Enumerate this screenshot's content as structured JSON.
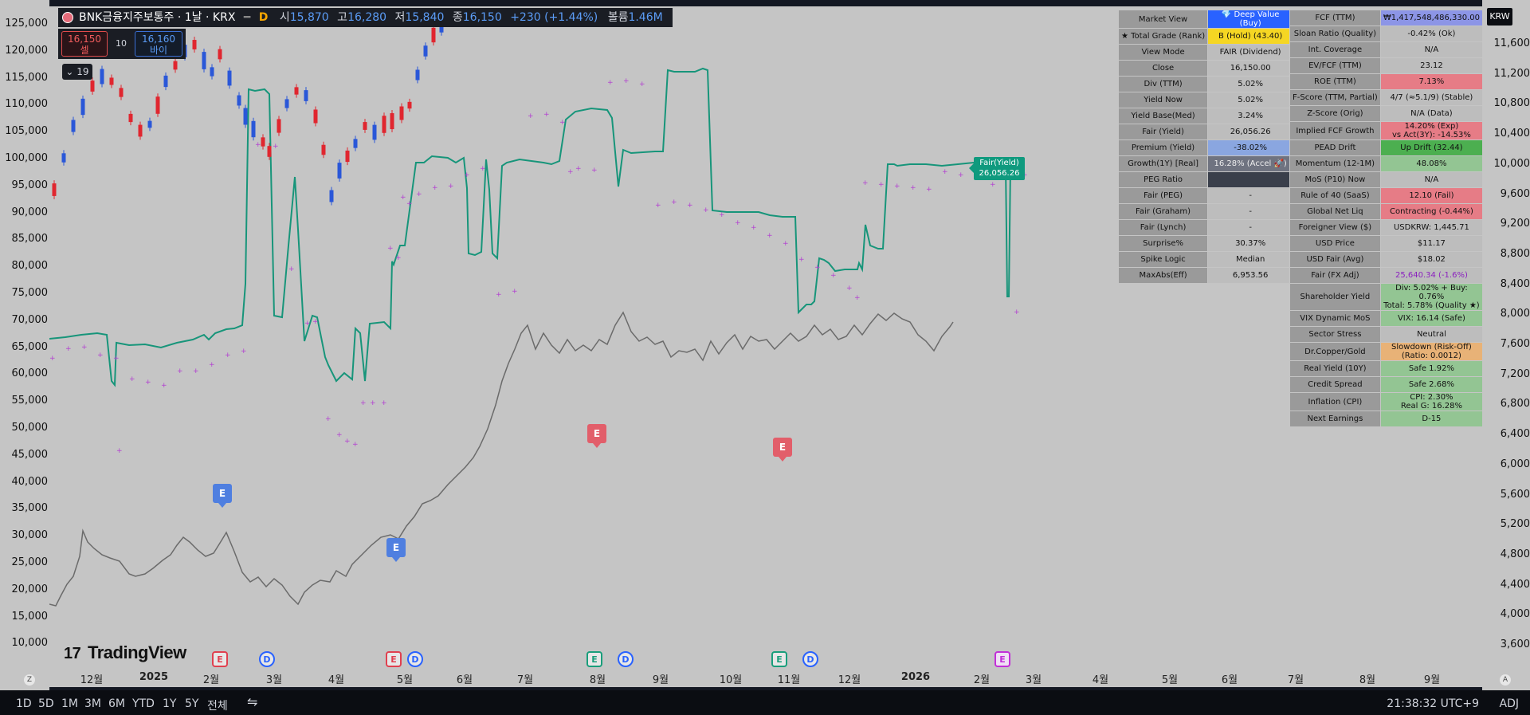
{
  "header": {
    "symbol": "BNK금융지주보통주 · 1날 · KRX",
    "dd": "D",
    "open_label": "시",
    "open": "15,870",
    "high_label": "고",
    "high": "16,280",
    "low_label": "저",
    "low": "15,840",
    "close_label": "종",
    "close": "16,150",
    "change": "+230 (+1.44%)",
    "volume_label": "볼륨",
    "volume": "1.46M"
  },
  "trade": {
    "sell_price": "16,150",
    "sell_label": "셀",
    "spread": "10",
    "buy_price": "16,160",
    "buy_label": "바이"
  },
  "collapse_label": "19",
  "brand": "TradingView",
  "currency": "KRW",
  "left_axis": [
    "125,000",
    "120,000",
    "115,000",
    "110,000",
    "105,000",
    "100,000",
    "95,000",
    "90,000",
    "85,000",
    "80,000",
    "75,000",
    "70,000",
    "65,000",
    "60,000",
    "55,000",
    "50,000",
    "45,000",
    "40,000",
    "35,000",
    "30,000",
    "25,000",
    "20,000",
    "15,000",
    "10,000"
  ],
  "right_axis": [
    "11,600",
    "11,200",
    "10,800",
    "10,400",
    "10,000",
    "9,600",
    "9,200",
    "8,800",
    "8,400",
    "8,000",
    "7,600",
    "7,200",
    "6,800",
    "6,400",
    "6,000",
    "5,600",
    "5,200",
    "4,800",
    "4,400",
    "4,000",
    "3,600"
  ],
  "x_axis": [
    {
      "label": "12월",
      "bold": false
    },
    {
      "label": "2025",
      "bold": true
    },
    {
      "label": "2월",
      "bold": false
    },
    {
      "label": "3월",
      "bold": false
    },
    {
      "label": "4월",
      "bold": false
    },
    {
      "label": "5월",
      "bold": false
    },
    {
      "label": "6월",
      "bold": false
    },
    {
      "label": "7월",
      "bold": false
    },
    {
      "label": "8월",
      "bold": false
    },
    {
      "label": "9월",
      "bold": false
    },
    {
      "label": "10월",
      "bold": false
    },
    {
      "label": "11월",
      "bold": false
    },
    {
      "label": "12월",
      "bold": false
    },
    {
      "label": "2026",
      "bold": true
    },
    {
      "label": "2월",
      "bold": false
    },
    {
      "label": "3월",
      "bold": false
    },
    {
      "label": "4월",
      "bold": false
    },
    {
      "label": "5월",
      "bold": false
    },
    {
      "label": "6월",
      "bold": false
    },
    {
      "label": "7월",
      "bold": false
    },
    {
      "label": "8월",
      "bold": false
    },
    {
      "label": "9월",
      "bold": false
    }
  ],
  "corner_left": "Z",
  "corner_right": "A",
  "ranges": [
    "1D",
    "5D",
    "1M",
    "3M",
    "6M",
    "YTD",
    "1Y",
    "5Y",
    "전체"
  ],
  "clock": "21:38:32 UTC+9",
  "adj": "ADJ",
  "fair_badge": {
    "title": "Fair(Yield)",
    "value": "26,056.26"
  },
  "earnings_marker": "E",
  "dividend_marker": "D",
  "table_left": [
    {
      "k": "Market View",
      "v": "💎 Deep Value (Buy)",
      "cls": "bg-blue"
    },
    {
      "k": "★ Total Grade (Rank)",
      "v": "B (Hold) (43.40)",
      "cls": "bg-yellow"
    },
    {
      "k": "View Mode",
      "v": "FAIR (Dividend)",
      "cls": ""
    },
    {
      "k": "Close",
      "v": "16,150.00",
      "cls": ""
    },
    {
      "k": "Div (TTM)",
      "v": "5.02%",
      "cls": ""
    },
    {
      "k": "Yield Now",
      "v": "5.02%",
      "cls": ""
    },
    {
      "k": "Yield Base(Med)",
      "v": "3.24%",
      "cls": ""
    },
    {
      "k": "Fair (Yield)",
      "v": "26,056.26",
      "cls": "",
      "tall": true
    },
    {
      "k": "Premium (Yield)",
      "v": "-38.02%",
      "cls": "bg-ltblue"
    },
    {
      "k": "Growth(1Y) [Real]",
      "v": "16.28% (Accel 🚀)",
      "cls": "bg-gray"
    },
    {
      "k": "PEG Ratio",
      "v": "",
      "cls": "bg-dark"
    },
    {
      "k": "Fair (PEG)",
      "v": "-",
      "cls": ""
    },
    {
      "k": "Fair (Graham)",
      "v": "-",
      "cls": ""
    },
    {
      "k": "Fair (Lynch)",
      "v": "-",
      "cls": ""
    },
    {
      "k": "Surprise%",
      "v": "30.37%",
      "cls": ""
    },
    {
      "k": "Spike Logic",
      "v": "Median",
      "cls": ""
    },
    {
      "k": "MaxAbs(Eff)",
      "v": "6,953.56",
      "cls": ""
    }
  ],
  "table_right": [
    {
      "k": "FCF (TTM)",
      "v": "₩1,417,548,486,330.00",
      "cls": "bg-periwinkle"
    },
    {
      "k": "Sloan Ratio (Quality)",
      "v": "-0.42% (Ok)",
      "cls": ""
    },
    {
      "k": "Int. Coverage",
      "v": "N/A",
      "cls": ""
    },
    {
      "k": "EV/FCF (TTM)",
      "v": "23.12",
      "cls": ""
    },
    {
      "k": "ROE (TTM)",
      "v": "7.13%",
      "cls": "bg-red"
    },
    {
      "k": "F-Score (TTM, Partial)",
      "v": "4/7 (≈5.1/9) (Stable)",
      "cls": ""
    },
    {
      "k": "Z-Score (Orig)",
      "v": "N/A (Data)",
      "cls": ""
    },
    {
      "k": "Implied FCF Growth",
      "v": "14.20% (Exp)\nvs Act(3Y): -14.53%",
      "cls": "bg-red",
      "tall": true
    },
    {
      "k": "PEAD Drift",
      "v": "Up Drift (32.44)",
      "cls": "bg-green"
    },
    {
      "k": "Momentum (12-1M)",
      "v": "48.08%",
      "cls": "bg-ltgreen"
    },
    {
      "k": "MoS (P10) Now",
      "v": "N/A",
      "cls": ""
    },
    {
      "k": "Rule of 40 (SaaS)",
      "v": "12.10 (Fail)",
      "cls": "bg-red"
    },
    {
      "k": "Global Net Liq",
      "v": "Contracting (-0.44%)",
      "cls": "bg-red"
    },
    {
      "k": "Foreigner View ($)",
      "v": "USDKRW: 1,445.71",
      "cls": ""
    },
    {
      "k": "USD Price",
      "v": "$11.17",
      "cls": ""
    },
    {
      "k": "USD Fair (Avg)",
      "v": "$18.02",
      "cls": ""
    },
    {
      "k": "Fair (FX Adj)",
      "v": "25,640.34 (-1.6%)",
      "cls": "bg-purpletext"
    },
    {
      "k": "Shareholder Yield",
      "v": "Div: 5.02% + Buy: 0.76%\nTotal: 5.78% (Quality ★)",
      "cls": "bg-ltgreen",
      "tall": true
    },
    {
      "k": "VIX Dynamic MoS",
      "v": "VIX: 16.14 (Safe)",
      "cls": "bg-ltgreen"
    },
    {
      "k": "Sector Stress",
      "v": "Neutral",
      "cls": ""
    },
    {
      "k": "Dr.Copper/Gold",
      "v": "Slowdown (Risk-Off)\n(Ratio: 0.0012)",
      "cls": "bg-orange",
      "tall": true
    },
    {
      "k": "Real Yield (10Y)",
      "v": "Safe 1.92%",
      "cls": "bg-ltgreen"
    },
    {
      "k": "Credit Spread",
      "v": "Safe 2.68%",
      "cls": "bg-ltgreen"
    },
    {
      "k": "Inflation (CPI)",
      "v": "CPI: 2.30%\nReal G: 16.28%",
      "cls": "bg-ltgreen",
      "tall": true
    },
    {
      "k": "Next Earnings",
      "v": "D-15",
      "cls": "bg-ltgreen"
    }
  ],
  "colors": {
    "up": "#e0262f",
    "down": "#2a57d8",
    "fair": "#17957a",
    "price": "#6b6b6b",
    "dots": "#b23fd1"
  }
}
